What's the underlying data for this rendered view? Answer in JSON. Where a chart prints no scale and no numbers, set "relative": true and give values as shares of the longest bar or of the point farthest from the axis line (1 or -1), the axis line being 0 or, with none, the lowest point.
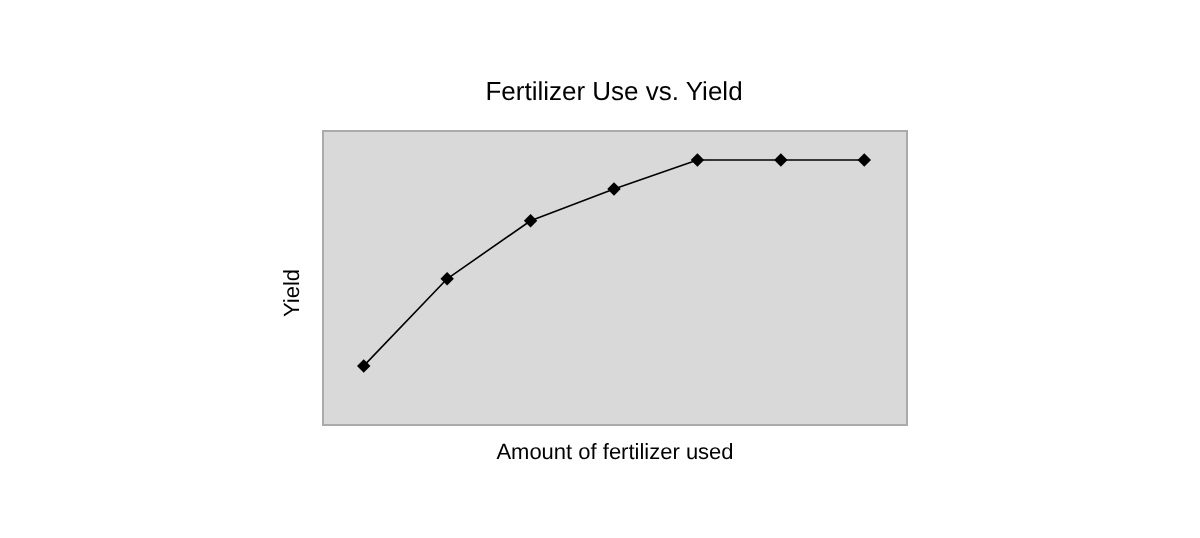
{
  "chart_data": {
    "type": "line",
    "title": "Fertilizer Use vs. Yield",
    "xlabel": "Amount of fertilizer used",
    "ylabel": "Yield",
    "relative": true,
    "categories": [
      null,
      null,
      null,
      null,
      null,
      null,
      null
    ],
    "series": [
      {
        "color": "#000000",
        "values": [
          0.22,
          0.55,
          0.77,
          0.89,
          1,
          1,
          1
        ]
      }
    ],
    "marker": "diamond",
    "line_style": "solid",
    "grid": false,
    "legend": false,
    "tick_labels": false
  }
}
